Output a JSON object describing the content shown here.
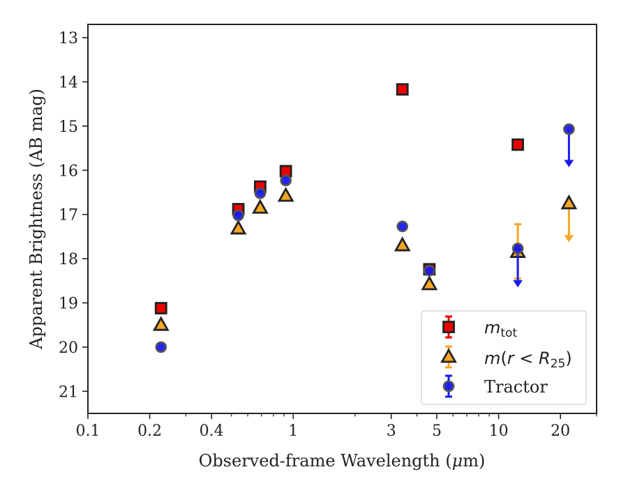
{
  "chart_data": {
    "type": "scatter",
    "xscale": "log",
    "yaxis_inverted": true,
    "xlim": [
      0.1,
      30
    ],
    "ylim": [
      21.5,
      12.7
    ],
    "xlabel_prefix": "Observed-frame Wavelength (",
    "xlabel_unit_mu": "μ",
    "xlabel_unit_rest": "m)",
    "ylabel": "Apparent Brightness (AB mag)",
    "x_ticks": [
      {
        "value": 0.1,
        "label": "0.1"
      },
      {
        "value": 0.2,
        "label": "0.2"
      },
      {
        "value": 0.4,
        "label": "0.4"
      },
      {
        "value": 1,
        "label": "1"
      },
      {
        "value": 3,
        "label": "3"
      },
      {
        "value": 5,
        "label": "5"
      },
      {
        "value": 10,
        "label": "10"
      },
      {
        "value": 20,
        "label": "20"
      }
    ],
    "x_minor_ticks": [
      0.3,
      0.5,
      0.6,
      0.7,
      0.8,
      0.9,
      2,
      4,
      6,
      7,
      8,
      9,
      30
    ],
    "y_ticks": [
      {
        "value": 13,
        "label": "13"
      },
      {
        "value": 14,
        "label": "14"
      },
      {
        "value": 15,
        "label": "15"
      },
      {
        "value": 16,
        "label": "16"
      },
      {
        "value": 17,
        "label": "17"
      },
      {
        "value": 18,
        "label": "18"
      },
      {
        "value": 19,
        "label": "19"
      },
      {
        "value": 20,
        "label": "20"
      },
      {
        "value": 21,
        "label": "21"
      }
    ],
    "legend_position": "lower-right",
    "series": [
      {
        "key": "mtot",
        "legend_base": "m",
        "legend_sub": "tot",
        "marker": "square",
        "color": "#ee0000",
        "edge": "#222222",
        "points": [
          {
            "x": 0.227,
            "y": 19.12
          },
          {
            "x": 0.54,
            "y": 16.88
          },
          {
            "x": 0.69,
            "y": 16.37
          },
          {
            "x": 0.92,
            "y": 16.02
          },
          {
            "x": 3.4,
            "y": 14.17
          },
          {
            "x": 4.6,
            "y": 18.24
          },
          {
            "x": 12.4,
            "y": 15.42
          }
        ]
      },
      {
        "key": "mr25",
        "legend_base": "m",
        "legend_paren_open": "(",
        "legend_r": "r",
        "legend_lt": " < ",
        "legend_R": "R",
        "legend_sub": "25",
        "legend_paren_close": ")",
        "marker": "triangle",
        "color": "#f5a623",
        "edge": "#222222",
        "points": [
          {
            "x": 0.227,
            "y": 19.5
          },
          {
            "x": 0.54,
            "y": 17.32
          },
          {
            "x": 0.69,
            "y": 16.85
          },
          {
            "x": 0.92,
            "y": 16.58
          },
          {
            "x": 3.4,
            "y": 17.7
          },
          {
            "x": 4.6,
            "y": 18.58
          },
          {
            "x": 12.4,
            "y": 17.85,
            "err_low": 17.22,
            "err_high": 18.45
          },
          {
            "x": 22,
            "y": 16.75,
            "upper_limit_to": 17.6
          }
        ]
      },
      {
        "key": "tractor",
        "legend_label": "Tractor",
        "marker": "circle",
        "color": "#1a1aee",
        "edge": "#555555",
        "points": [
          {
            "x": 0.227,
            "y": 20.0
          },
          {
            "x": 0.54,
            "y": 17.02
          },
          {
            "x": 0.69,
            "y": 16.52
          },
          {
            "x": 0.92,
            "y": 16.23
          },
          {
            "x": 3.4,
            "y": 17.27
          },
          {
            "x": 4.6,
            "y": 18.27
          },
          {
            "x": 12.4,
            "y": 17.77,
            "upper_limit_to": 18.62
          },
          {
            "x": 22,
            "y": 15.07,
            "upper_limit_to": 15.9
          }
        ]
      }
    ]
  }
}
